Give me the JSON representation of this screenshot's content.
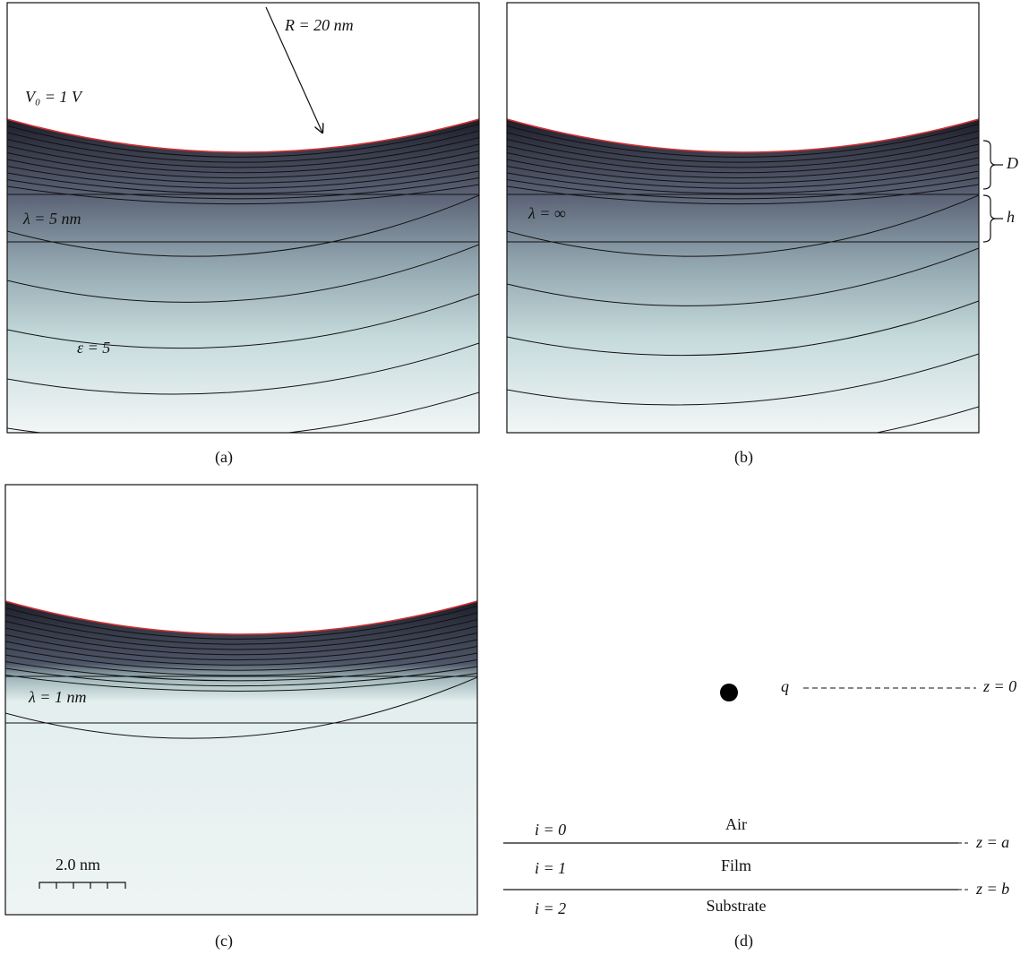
{
  "panels": [
    {
      "caption": "(a)",
      "radius_label": "R = 20 nm",
      "voltage_label": "V₀ = 1 V",
      "lambda_label": "λ = 5 nm",
      "epsilon_label": "ε = 5"
    },
    {
      "caption": "(b)",
      "lambda_label": "λ = ∞",
      "bracket_top": "D",
      "bracket_bottom": "h"
    },
    {
      "caption": "(c)",
      "lambda_label": "λ = 1 nm",
      "scale_label": "2.0 nm"
    },
    {
      "caption": "(d)",
      "charge_label": "q",
      "charge_plane": "z = 0",
      "layers": [
        {
          "index": "i = 0",
          "name": "Air",
          "boundary": "z = a"
        },
        {
          "index": "i = 1",
          "name": "Film",
          "boundary": "z = b"
        },
        {
          "index": "i = 2",
          "name": "Substrate"
        }
      ]
    }
  ]
}
